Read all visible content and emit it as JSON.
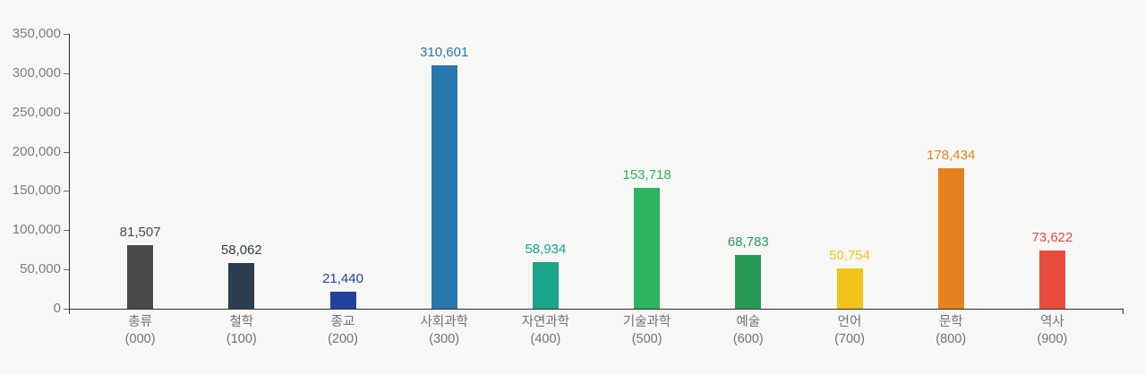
{
  "chart_data": {
    "type": "bar",
    "title": "",
    "xlabel": "",
    "ylabel": "",
    "categories": [
      "총류",
      "철학",
      "종교",
      "사회과학",
      "자연과학",
      "기술과학",
      "예술",
      "언어",
      "문학",
      "역사"
    ],
    "codes": [
      "(000)",
      "(100)",
      "(200)",
      "(300)",
      "(400)",
      "(500)",
      "(600)",
      "(700)",
      "(800)",
      "(900)"
    ],
    "values": [
      81507,
      58062,
      21440,
      310601,
      58934,
      153718,
      68783,
      50754,
      178434,
      73622
    ],
    "value_labels": [
      "81,507",
      "58,062",
      "21,440",
      "310,601",
      "58,934",
      "153,718",
      "68,783",
      "50,754",
      "178,434",
      "73,622"
    ],
    "bar_colors": [
      "#4a4a4c",
      "#2c3e50",
      "#2341a0",
      "#2878ad",
      "#1aa489",
      "#2eb360",
      "#279a56",
      "#f0c419",
      "#e5821f",
      "#e74c3c"
    ],
    "ylim": [
      0,
      350000
    ],
    "y_ticks": [
      "0",
      "50,000",
      "100,000",
      "150,000",
      "200,000",
      "250,000",
      "300,000",
      "350,000"
    ],
    "grid": false,
    "legend": "none",
    "background_color": "#f7f7f6",
    "axis_color": "#2b2b2b"
  }
}
